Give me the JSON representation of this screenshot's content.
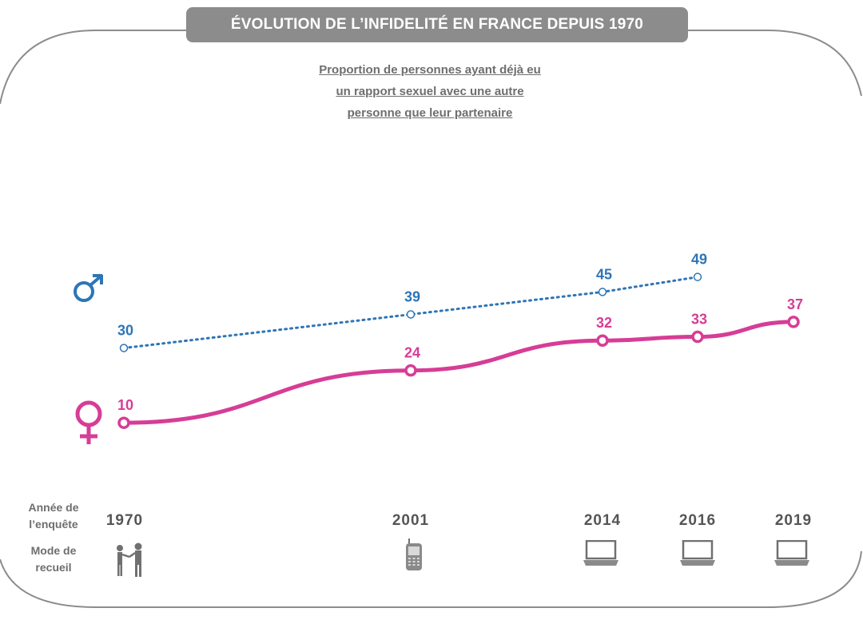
{
  "header": {
    "title": "ÉVOLUTION DE L’INFIDELITÉ EN FRANCE  DEPUIS 1970",
    "subtitle_lines": [
      "Proportion de personnes ayant déjà eu",
      "un rapport sexuel avec une autre",
      "personne que leur partenaire"
    ]
  },
  "row_labels": {
    "year_label_line1": "Année de",
    "year_label_line2": "l’enquête",
    "mode_label_line1": "Mode de",
    "mode_label_line2": "recueil"
  },
  "modes": [
    {
      "year": "1970",
      "icon": "face-to-face-interview-icon"
    },
    {
      "year": "2001",
      "icon": "mobile-phone-icon"
    },
    {
      "year": "2014",
      "icon": "laptop-icon"
    },
    {
      "year": "2016",
      "icon": "laptop-icon"
    },
    {
      "year": "2019",
      "icon": "laptop-icon"
    }
  ],
  "colors": {
    "men": "#2e75b6",
    "women": "#d63d96",
    "frame": "#8c8c8c",
    "title_bg": "#8c8c8c"
  },
  "chart_data": {
    "type": "line",
    "title": "ÉVOLUTION DE L’INFIDELITÉ EN FRANCE  DEPUIS 1970",
    "xlabel": "Année de l’enquête",
    "ylabel": "",
    "x": [
      1970,
      2001,
      2014,
      2016,
      2019
    ],
    "categories": [
      "1970",
      "2001",
      "2014",
      "2016",
      "2019"
    ],
    "ylim": [
      0,
      55
    ],
    "series": [
      {
        "name": "Hommes",
        "symbol": "♂",
        "style": "dotted",
        "x": [
          1970,
          2001,
          2014,
          2016
        ],
        "values": [
          30,
          39,
          45,
          49
        ]
      },
      {
        "name": "Femmes",
        "symbol": "♀",
        "style": "solid",
        "x": [
          1970,
          2001,
          2014,
          2016,
          2019
        ],
        "values": [
          10,
          24,
          32,
          33,
          37
        ]
      }
    ]
  }
}
